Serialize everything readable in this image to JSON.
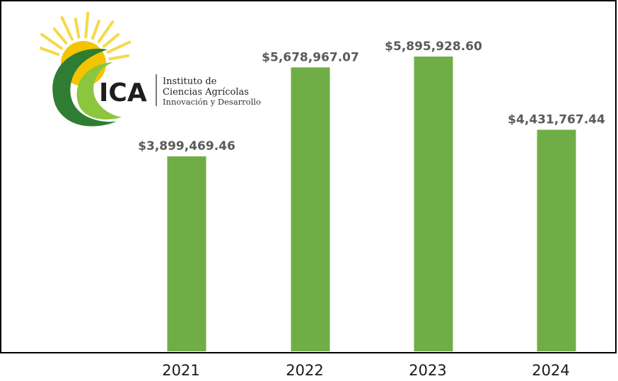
{
  "logo": {
    "name": "ICA",
    "line1": "Instituto de",
    "line2": "Ciencias Agrícolas",
    "line3": "Innovación y Desarrollo",
    "colors": {
      "sun": "#f5c400",
      "sun_ray": "#f7d84a",
      "green_dark": "#2f7d32",
      "green_light": "#8cc63f"
    }
  },
  "chart_data": {
    "type": "bar",
    "categories": [
      "2021",
      "2022",
      "2023",
      "2024"
    ],
    "values": [
      3899469.46,
      5678967.07,
      5895928.6,
      4431767.44
    ],
    "data_labels": [
      "$3,899,469.46",
      "$5,678,967.07",
      "$5,895,928.60",
      "$4,431,767.44"
    ],
    "title": "",
    "xlabel": "",
    "ylabel": "",
    "ylim": [
      0,
      7000000
    ],
    "grid": false,
    "legend": "none",
    "bar_color": "#70ad47",
    "frame_color": "#000000"
  }
}
